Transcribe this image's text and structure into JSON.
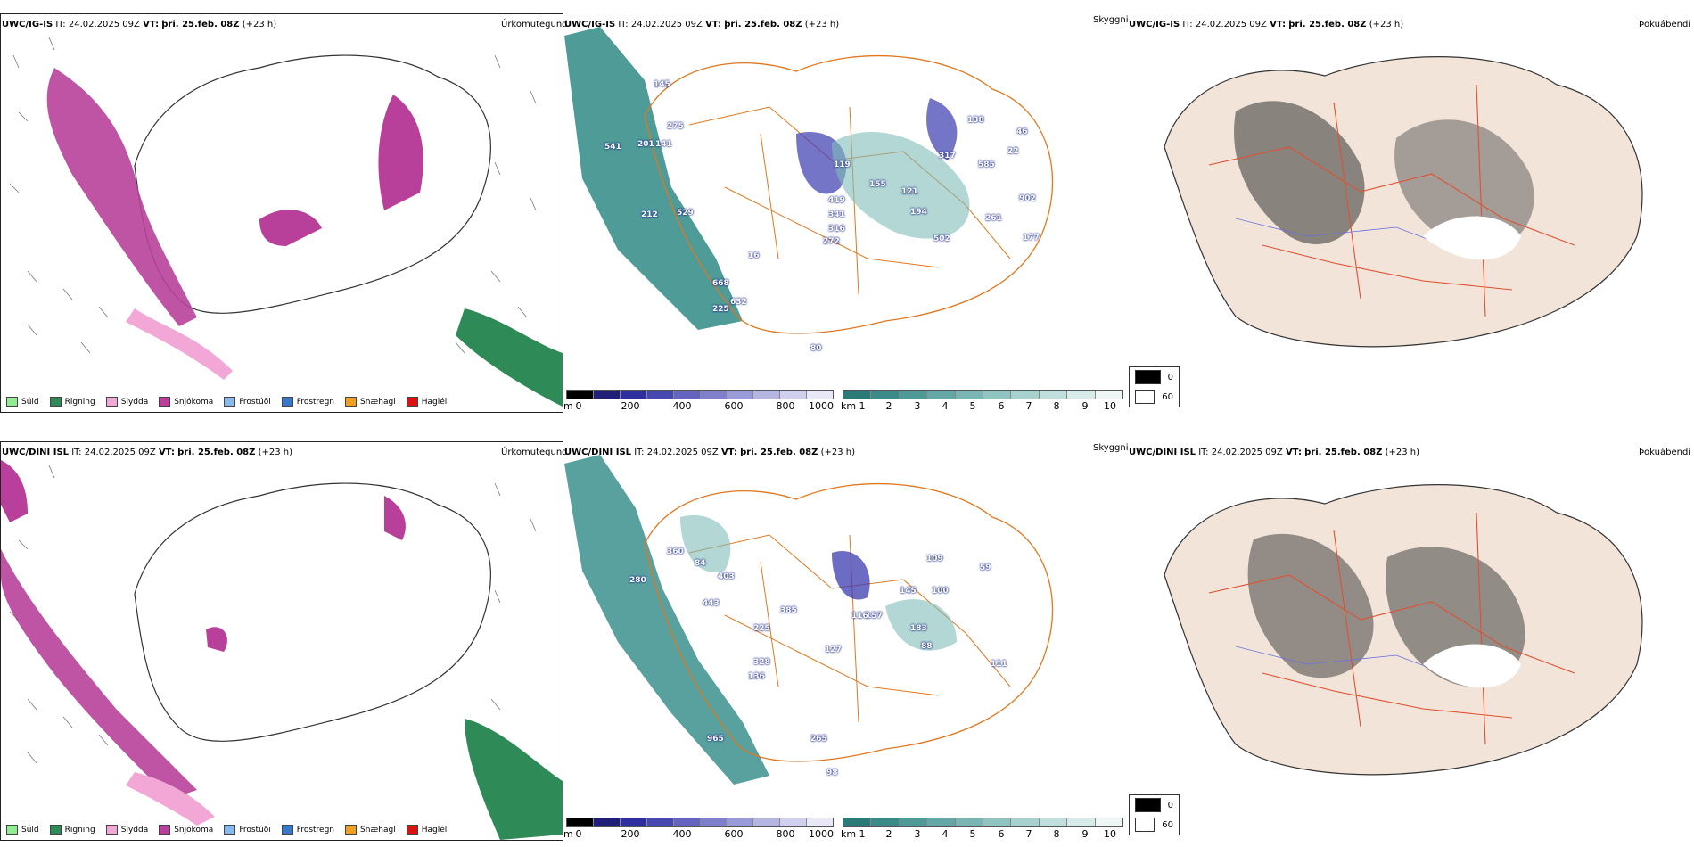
{
  "rows": [
    {
      "model": "UWC/IG-IS",
      "precip_header": {
        "model": "UWC/IG-IS",
        "it_label": "IT:",
        "it_value": "24.02.2025 09Z",
        "vt_label": "VT:",
        "vt_value": "þri. 25.feb. 08Z",
        "lead": "(+23 h)",
        "title": "Úrkomutegund"
      },
      "cloud_header": {
        "model": "UWC/IG-IS",
        "it_label": "IT:",
        "it_value": "24.02.2025 09Z",
        "vt_label": "VT:",
        "vt_value": "þri. 25.feb. 08Z",
        "lead": "(+23 h)",
        "title": "Skyggni"
      },
      "fog_header": {
        "model": "UWC/IG-IS",
        "it_label": "IT:",
        "it_value": "24.02.2025 09Z",
        "vt_label": "VT:",
        "vt_value": "þri. 25.feb. 08Z",
        "lead": "(+23 h)",
        "title": "Þokuábendi"
      },
      "values": [
        "275",
        "145",
        "541",
        "201",
        "141",
        "529",
        "212",
        "668",
        "632",
        "225",
        "419",
        "341",
        "316",
        "272",
        "119",
        "155",
        "138",
        "585",
        "22",
        "46",
        "902",
        "177",
        "261",
        "194",
        "502",
        "121",
        "317",
        "80",
        "16"
      ]
    },
    {
      "model": "UWC/DINI ISL",
      "precip_header": {
        "model": "UWC/DINI ISL",
        "it_label": "IT:",
        "it_value": "24.02.2025 09Z",
        "vt_label": "VT:",
        "vt_value": "þri. 25.feb. 08Z",
        "lead": "(+23 h)",
        "title": "Úrkomutegund"
      },
      "cloud_header": {
        "model": "UWC/DINI ISL",
        "it_label": "IT:",
        "it_value": "24.02.2025 09Z",
        "vt_label": "VT:",
        "vt_value": "þri. 25.feb. 08Z",
        "lead": "(+23 h)",
        "title": "Skyggni"
      },
      "fog_header": {
        "model": "UWC/DINI ISL",
        "it_label": "IT:",
        "it_value": "24.02.2025 09Z",
        "vt_label": "VT:",
        "vt_value": "þri. 25.feb. 08Z",
        "lead": "(+23 h)",
        "title": "Þokuábendi"
      },
      "values": [
        "360",
        "84",
        "403",
        "280",
        "443",
        "385",
        "225",
        "328",
        "136",
        "965",
        "265",
        "98",
        "127",
        "157",
        "100",
        "183",
        "111",
        "59",
        "109",
        "145",
        "88",
        "116"
      ]
    }
  ],
  "precip_legend": [
    {
      "label": "Súld",
      "color": "#90ee90"
    },
    {
      "label": "Rigning",
      "color": "#2e8b57"
    },
    {
      "label": "Slydda",
      "color": "#f2a7d6"
    },
    {
      "label": "Snjókoma",
      "color": "#b8409a"
    },
    {
      "label": "Frostúði",
      "color": "#87b9ea"
    },
    {
      "label": "Frostregn",
      "color": "#3a78c8"
    },
    {
      "label": "Snæhagl",
      "color": "#f0a020"
    },
    {
      "label": "Haglél",
      "color": "#e01010"
    }
  ],
  "cloud_base": {
    "unit": "m",
    "ticks": [
      "0",
      "200",
      "400",
      "600",
      "800",
      "1000"
    ],
    "colors": [
      "#000000",
      "#1f1f7a",
      "#2e2e9e",
      "#4747b0",
      "#6464c0",
      "#7f7fcc",
      "#9a9ad8",
      "#b5b5e2",
      "#d0d0ee",
      "#e8e8f8"
    ]
  },
  "visibility": {
    "unit": "km",
    "ticks": [
      "1",
      "2",
      "3",
      "4",
      "5",
      "6",
      "7",
      "8",
      "9",
      "10"
    ],
    "colors": [
      "#2a7a78",
      "#3a8a88",
      "#4e9a97",
      "#63a8a5",
      "#79b6b3",
      "#90c4c1",
      "#a7d1cf",
      "#bfdedc",
      "#d6ebea",
      "#eef7f6"
    ]
  },
  "fog_legend": [
    {
      "label": "0",
      "color": "#000000"
    },
    {
      "label": "60",
      "color": "#ffffff"
    }
  ],
  "colors": {
    "snow": "#b8409a",
    "rain": "#2e8b57",
    "sleet": "#f2a7d6",
    "vis": "#2f8a86",
    "cloud": "#3b3bb0",
    "roads": "#e07820",
    "fog_land": "#f2e4d8",
    "fog_roads": "#e05030"
  }
}
